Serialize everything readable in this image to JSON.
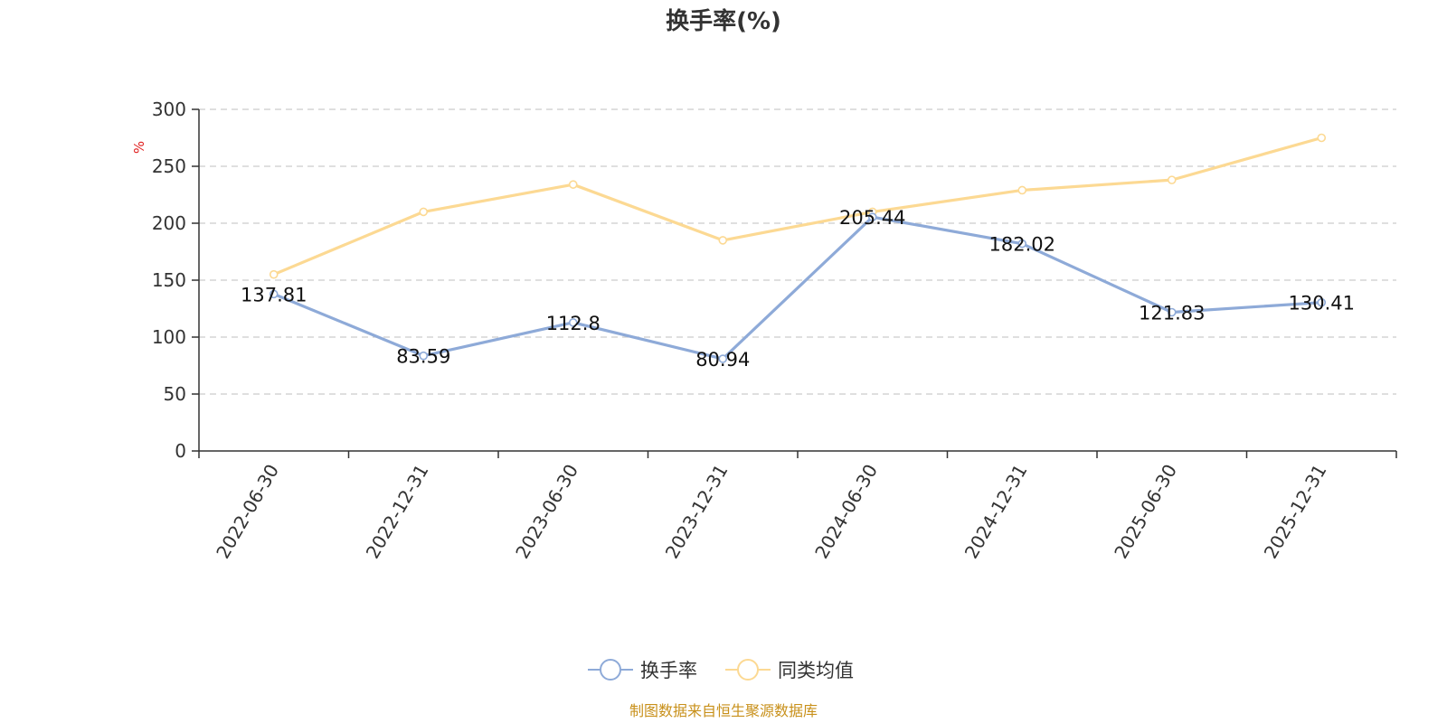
{
  "chart_data": {
    "type": "line",
    "title": "换手率(%)",
    "ylabel": "%",
    "ylim": [
      0,
      300
    ],
    "yticks": [
      0,
      50,
      100,
      150,
      200,
      250,
      300
    ],
    "categories": [
      "2022-06-30",
      "2022-12-31",
      "2023-06-30",
      "2023-12-31",
      "2024-06-30",
      "2024-12-31",
      "2025-06-30",
      "2025-12-31"
    ],
    "series": [
      {
        "name": "换手率",
        "color": "#8eaad8",
        "values": [
          137.81,
          83.59,
          112.8,
          80.94,
          205.44,
          182.02,
          121.83,
          130.41
        ],
        "data_labels": [
          "137.81",
          "83.59",
          "112.8",
          "80.94",
          "205.44",
          "182.02",
          "121.83",
          "130.41"
        ]
      },
      {
        "name": "同类均值",
        "color": "#fcd993",
        "values": [
          155,
          210,
          234,
          185,
          210,
          229,
          238,
          275
        ]
      }
    ],
    "grid": true,
    "legend_position": "bottom-center",
    "unit_color": "#e02020"
  },
  "source_text": "制图数据来自恒生聚源数据库",
  "source_color": "#c8901a"
}
